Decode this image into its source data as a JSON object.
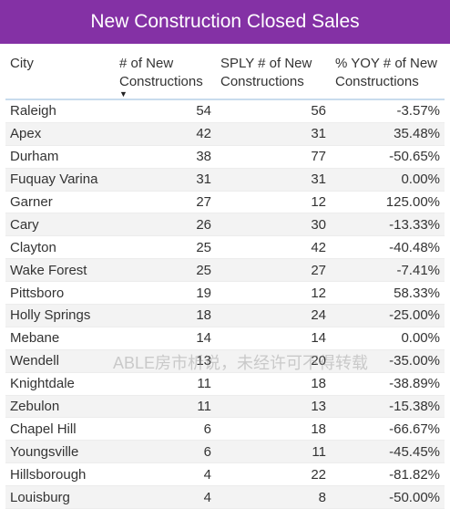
{
  "title": "New Construction Closed Sales",
  "colors": {
    "title_bg": "#8431a5",
    "header_underline": "#c8dced",
    "alt_row": "#f3f3f3"
  },
  "columns": [
    {
      "label_line1": "City",
      "label_line2": ""
    },
    {
      "label_line1": "# of New",
      "label_line2": "Constructions"
    },
    {
      "label_line1": "SPLY # of New",
      "label_line2": "Constructions"
    },
    {
      "label_line1": "% YOY # of New",
      "label_line2": "Constructions"
    }
  ],
  "sort_indicator": "▼",
  "rows": [
    {
      "city": "Raleigh",
      "new": "54",
      "sply": "56",
      "yoy": "-3.57%"
    },
    {
      "city": "Apex",
      "new": "42",
      "sply": "31",
      "yoy": "35.48%"
    },
    {
      "city": "Durham",
      "new": "38",
      "sply": "77",
      "yoy": "-50.65%"
    },
    {
      "city": "Fuquay Varina",
      "new": "31",
      "sply": "31",
      "yoy": "0.00%"
    },
    {
      "city": "Garner",
      "new": "27",
      "sply": "12",
      "yoy": "125.00%"
    },
    {
      "city": "Cary",
      "new": "26",
      "sply": "30",
      "yoy": "-13.33%"
    },
    {
      "city": "Clayton",
      "new": "25",
      "sply": "42",
      "yoy": "-40.48%"
    },
    {
      "city": "Wake Forest",
      "new": "25",
      "sply": "27",
      "yoy": "-7.41%"
    },
    {
      "city": "Pittsboro",
      "new": "19",
      "sply": "12",
      "yoy": "58.33%"
    },
    {
      "city": "Holly Springs",
      "new": "18",
      "sply": "24",
      "yoy": "-25.00%"
    },
    {
      "city": "Mebane",
      "new": "14",
      "sply": "14",
      "yoy": "0.00%"
    },
    {
      "city": "Wendell",
      "new": "13",
      "sply": "20",
      "yoy": "-35.00%"
    },
    {
      "city": "Knightdale",
      "new": "11",
      "sply": "18",
      "yoy": "-38.89%"
    },
    {
      "city": "Zebulon",
      "new": "11",
      "sply": "13",
      "yoy": "-15.38%"
    },
    {
      "city": "Chapel Hill",
      "new": "6",
      "sply": "18",
      "yoy": "-66.67%"
    },
    {
      "city": "Youngsville",
      "new": "6",
      "sply": "11",
      "yoy": "-45.45%"
    },
    {
      "city": "Hillsborough",
      "new": "4",
      "sply": "22",
      "yoy": "-81.82%"
    },
    {
      "city": "Louisburg",
      "new": "4",
      "sply": "8",
      "yoy": "-50.00%"
    }
  ],
  "watermark": "ABLE房市析说，未经许可不得转载"
}
